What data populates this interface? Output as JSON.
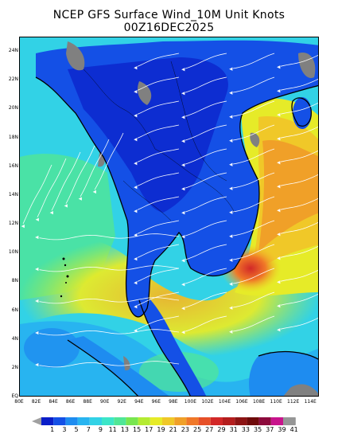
{
  "header": {
    "title": "NCEP GFS Surface Wind_10M Unit Knots",
    "subtitle": "00Z16DEC2025"
  },
  "map": {
    "lat_labels": [
      "EQ",
      "2N",
      "4N",
      "6N",
      "8N",
      "10N",
      "12N",
      "14N",
      "16N",
      "18N",
      "20N",
      "22N",
      "24N"
    ],
    "lon_labels": [
      "80E",
      "82E",
      "84E",
      "86E",
      "88E",
      "90E",
      "92E",
      "94E",
      "96E",
      "98E",
      "100E",
      "102E",
      "104E",
      "106E",
      "108E",
      "110E",
      "112E",
      "114E"
    ],
    "lat_range": [
      0,
      25
    ],
    "lon_range": [
      80,
      115
    ],
    "land_mask_color": "#808080",
    "streamline_color": "#ffffff",
    "coastline_color": "#000000"
  },
  "colorbar": {
    "labels": [
      "1",
      "3",
      "5",
      "7",
      "9",
      "11",
      "13",
      "15",
      "17",
      "19",
      "21",
      "23",
      "25",
      "27",
      "29",
      "31",
      "33",
      "35",
      "37",
      "39",
      "41"
    ],
    "colors": [
      "#0a1ec8",
      "#1450e6",
      "#1e8cf0",
      "#28b4f0",
      "#32d2e6",
      "#3ce6c8",
      "#50e696",
      "#78e650",
      "#b4eb32",
      "#e6eb28",
      "#f0c828",
      "#f0a028",
      "#f07828",
      "#e65028",
      "#d22828",
      "#b41e1e",
      "#8c1414",
      "#6e0a0a",
      "#8c0a3c",
      "#c8148c",
      "#969696"
    ]
  }
}
